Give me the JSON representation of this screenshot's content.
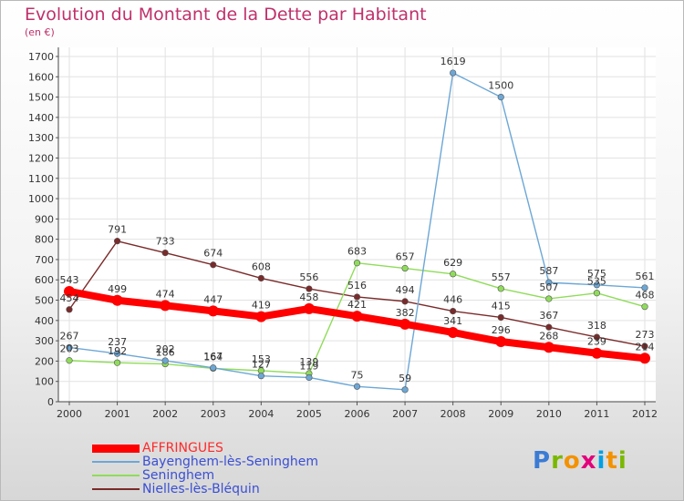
{
  "header": {
    "title": "Evolution du Montant de la Dette par Habitant",
    "unit": "(en €)"
  },
  "logo": {
    "text": "Proxiti",
    "colors": [
      "#3a7bd5",
      "#7ab800",
      "#f39200",
      "#e3007b",
      "#00a0e3",
      "#f39200",
      "#7ab800"
    ]
  },
  "chart_data": {
    "type": "line",
    "title": "Evolution du Montant de la Dette par Habitant",
    "ylabel": "(en €)",
    "xlabel": "",
    "x": [
      "2000",
      "2001",
      "2002",
      "2003",
      "2004",
      "2005",
      "2006",
      "2007",
      "2008",
      "2009",
      "2010",
      "2011",
      "2012"
    ],
    "ylim": [
      0,
      1700
    ],
    "yticks": [
      "0",
      "100",
      "200",
      "300",
      "400",
      "500",
      "600",
      "700",
      "800",
      "900",
      "1000",
      "1100",
      "1200",
      "1300",
      "1400",
      "1500",
      "1600",
      "1700"
    ],
    "grid": true,
    "legend_position": "bottom-left",
    "series": [
      {
        "name": "AFFRINGUES",
        "color": "#ff0000",
        "values": [
          543,
          499,
          474,
          447,
          419,
          458,
          421,
          382,
          341,
          296,
          268,
          239,
          214
        ]
      },
      {
        "name": "Bayenghem-lès-Seninghem",
        "color": "#6ca7d6",
        "values": [
          267,
          237,
          202,
          167,
          127,
          119,
          75,
          59,
          1619,
          1500,
          587,
          575,
          561
        ]
      },
      {
        "name": "Seninghem",
        "color": "#8fdc5a",
        "values": [
          203,
          192,
          186,
          164,
          153,
          139,
          683,
          657,
          629,
          557,
          507,
          535,
          468
        ]
      },
      {
        "name": "Nielles-lès-Bléquin",
        "color": "#7a2a2a",
        "values": [
          454,
          791,
          733,
          674,
          608,
          556,
          516,
          494,
          446,
          415,
          367,
          318,
          273
        ]
      }
    ]
  }
}
